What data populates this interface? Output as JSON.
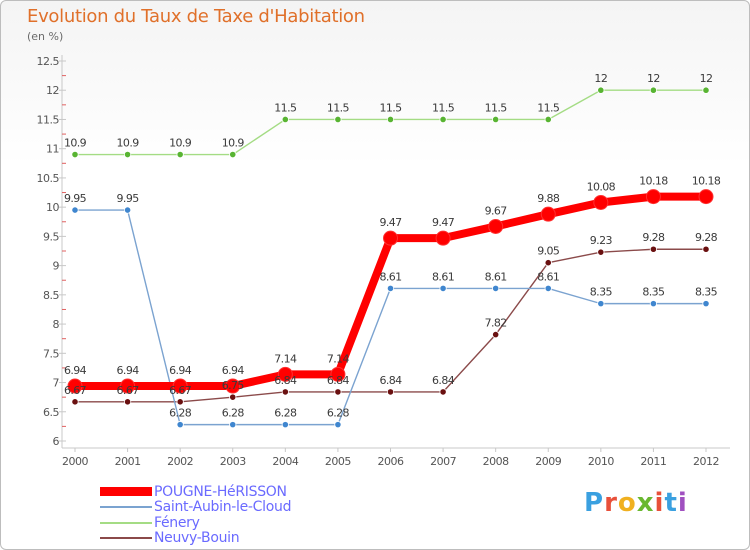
{
  "header": {
    "title": "Evolution du Taux de Taxe d'Habitation",
    "unit": "(en %)"
  },
  "brand": {
    "text": "Proxiti",
    "colors": [
      "#3aa0e0",
      "#e8503a",
      "#f0b020",
      "#6ab830",
      "#e8503a",
      "#3aa0e0",
      "#a050c0"
    ]
  },
  "chart_data": {
    "type": "line",
    "title": "Evolution du Taux de Taxe d'Habitation",
    "ylabel": "(en %)",
    "x": [
      "2000",
      "2001",
      "2002",
      "2003",
      "2004",
      "2005",
      "2006",
      "2007",
      "2008",
      "2009",
      "2010",
      "2011",
      "2012"
    ],
    "ylim": [
      6,
      12.5
    ],
    "yticks": [
      "6",
      "6.5",
      "7",
      "7.5",
      "8",
      "8.5",
      "9",
      "9.5",
      "10",
      "10.5",
      "11",
      "11.5",
      "12",
      "12.5"
    ],
    "grid": false,
    "legend_position": "bottom-left",
    "series": [
      {
        "name": "POUGNE-HéRISSON",
        "color": "#ff0000",
        "marker_color": "#ff0000",
        "emphasis": true,
        "values": [
          6.94,
          6.94,
          6.94,
          6.94,
          7.14,
          7.14,
          9.47,
          9.47,
          9.67,
          9.88,
          10.08,
          10.18,
          10.18
        ],
        "labels": [
          "6.94",
          "6.94",
          "6.94",
          "6.94",
          "7.14",
          "7.14",
          "9.47",
          "9.47",
          "9.67",
          "9.88",
          "10.08",
          "10.18",
          "10.18"
        ]
      },
      {
        "name": "Saint-Aubin-le-Cloud",
        "color": "#7ba3d0",
        "marker_color": "#3f86cf",
        "values": [
          9.95,
          9.95,
          6.28,
          6.28,
          6.28,
          6.28,
          8.61,
          8.61,
          8.61,
          8.61,
          8.35,
          8.35,
          8.35
        ],
        "labels": [
          "9.95",
          "9.95",
          "6.28",
          "6.28",
          "6.28",
          "6.28",
          "8.61",
          "8.61",
          "8.61",
          "8.61",
          "8.35",
          "8.35",
          "8.35"
        ]
      },
      {
        "name": "Fénery",
        "color": "#a4dc84",
        "marker_color": "#58b432",
        "values": [
          10.9,
          10.9,
          10.9,
          10.9,
          11.5,
          11.5,
          11.5,
          11.5,
          11.5,
          11.5,
          12,
          12,
          12
        ],
        "labels": [
          "10.9",
          "10.9",
          "10.9",
          "10.9",
          "11.5",
          "11.5",
          "11.5",
          "11.5",
          "11.5",
          "11.5",
          "12",
          "12",
          "12"
        ]
      },
      {
        "name": "Neuvy-Bouin",
        "color": "#8b4a4a",
        "marker_color": "#6a1010",
        "values": [
          6.67,
          6.67,
          6.67,
          6.75,
          6.84,
          6.84,
          6.84,
          6.84,
          7.82,
          9.05,
          9.23,
          9.28,
          9.28
        ],
        "labels": [
          "6.67",
          "6.67",
          "6.67",
          "6.75",
          "6.84",
          "6.84",
          "6.84",
          "6.84",
          "7.82",
          "9.05",
          "9.23",
          "9.28",
          "9.28"
        ]
      }
    ]
  }
}
